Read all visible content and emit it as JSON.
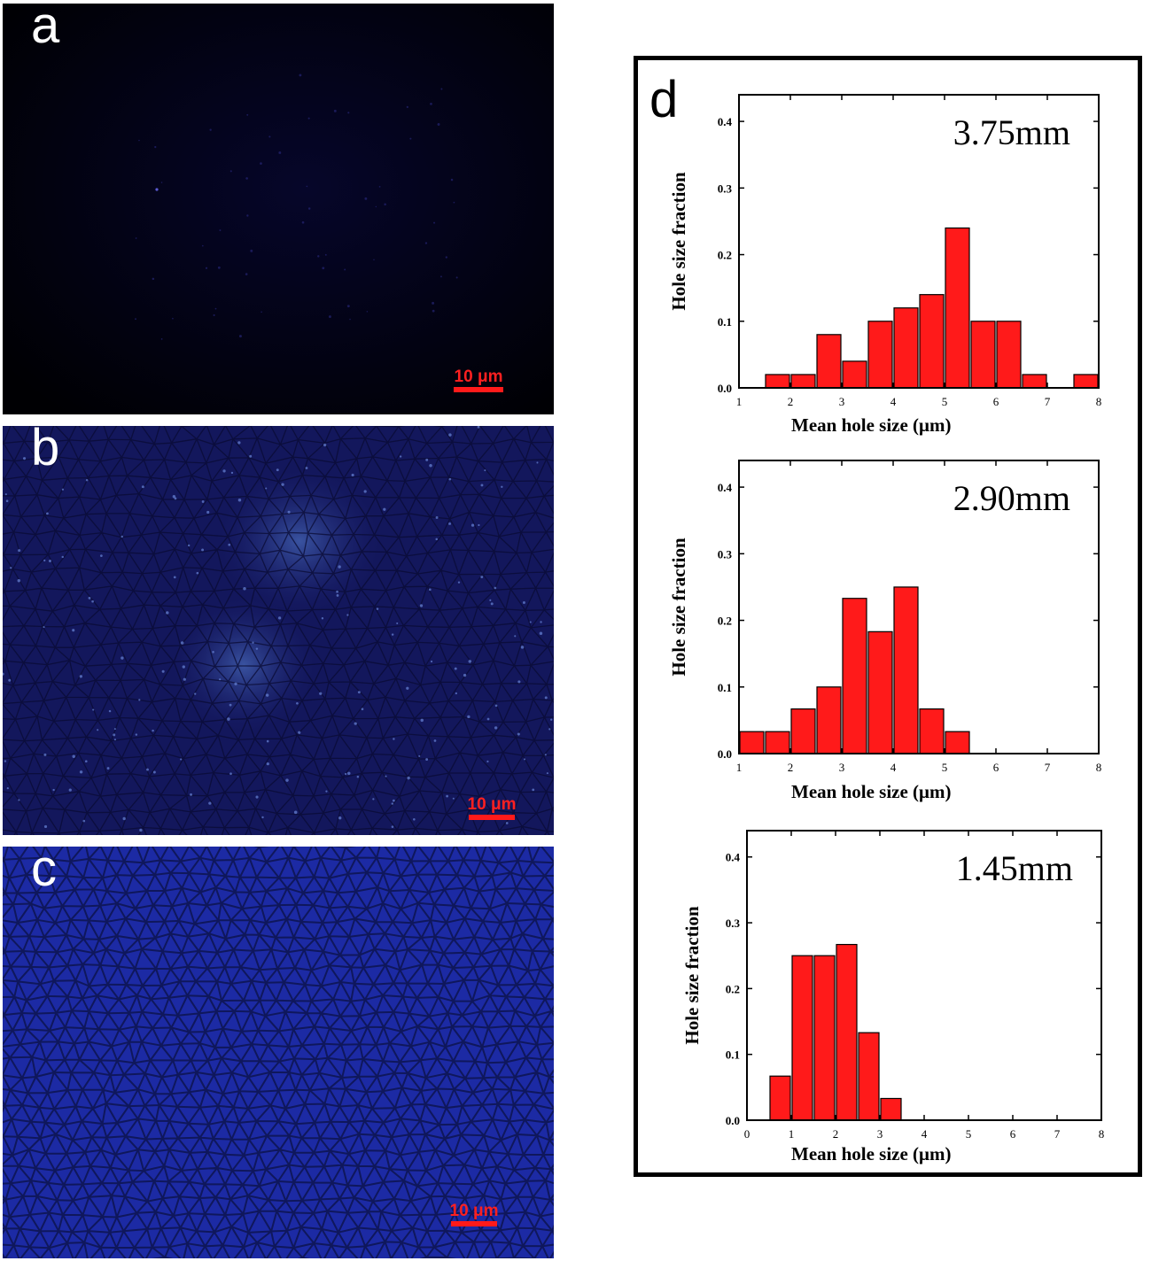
{
  "panels": {
    "a": {
      "letter": "a",
      "scale_label": "10 μm",
      "background": "#000005",
      "tint": "#05052a"
    },
    "b": {
      "letter": "b",
      "scale_label": "10 μm",
      "background": "#12165e",
      "cell_line": "#0a0b33"
    },
    "c": {
      "letter": "c",
      "scale_label": "10 μm",
      "background": "#1a26a0",
      "cell_line": "#0d1450"
    },
    "d": {
      "letter": "d"
    }
  },
  "colors": {
    "bar_fill": "#ff1a1a",
    "bar_stroke": "#000000",
    "scale_bar": "#ff1a1a"
  },
  "chart_data": [
    {
      "type": "bar",
      "annotation": "3.75mm",
      "xlabel": "Mean hole size (μm)",
      "ylabel": "Hole size fraction",
      "xlim": [
        1,
        8
      ],
      "ylim": [
        0,
        0.44
      ],
      "xticks": [
        "1",
        "2",
        "3",
        "4",
        "5",
        "6",
        "7",
        "8"
      ],
      "yticks": [
        "0.0",
        "0.1",
        "0.2",
        "0.3",
        "0.4"
      ],
      "bin_width": 0.5,
      "bin_centers": [
        1.75,
        2.25,
        2.75,
        3.25,
        3.75,
        4.25,
        4.75,
        5.25,
        5.75,
        6.25,
        6.75,
        7.75
      ],
      "values": [
        0.02,
        0.02,
        0.08,
        0.04,
        0.1,
        0.12,
        0.14,
        0.24,
        0.1,
        0.1,
        0.02,
        0.02
      ]
    },
    {
      "type": "bar",
      "annotation": "2.90mm",
      "xlabel": "Mean hole size (μm)",
      "ylabel": "Hole size fraction",
      "xlim": [
        1,
        8
      ],
      "ylim": [
        0,
        0.44
      ],
      "xticks": [
        "1",
        "2",
        "3",
        "4",
        "5",
        "6",
        "7",
        "8"
      ],
      "yticks": [
        "0.0",
        "0.1",
        "0.2",
        "0.3",
        "0.4"
      ],
      "bin_width": 0.5,
      "bin_centers": [
        1.25,
        1.75,
        2.25,
        2.75,
        3.25,
        3.75,
        4.25,
        4.75,
        5.25
      ],
      "values": [
        0.033,
        0.033,
        0.067,
        0.1,
        0.233,
        0.183,
        0.25,
        0.067,
        0.033
      ]
    },
    {
      "type": "bar",
      "annotation": "1.45mm",
      "xlabel": "Mean hole size (μm)",
      "ylabel": "Hole size fraction",
      "xlim": [
        0,
        8
      ],
      "ylim": [
        0,
        0.44
      ],
      "xticks": [
        "0",
        "1",
        "2",
        "3",
        "4",
        "5",
        "6",
        "7",
        "8"
      ],
      "yticks": [
        "0.0",
        "0.1",
        "0.2",
        "0.3",
        "0.4"
      ],
      "bin_width": 0.5,
      "bin_centers": [
        0.75,
        1.25,
        1.75,
        2.25,
        2.75,
        3.25
      ],
      "values": [
        0.067,
        0.25,
        0.25,
        0.267,
        0.133,
        0.033
      ]
    }
  ]
}
